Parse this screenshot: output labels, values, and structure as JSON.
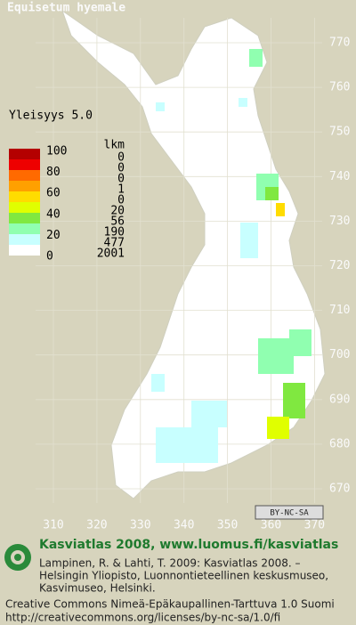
{
  "title": "Equisetum hyemale",
  "frequency_label": "Yleisyys 5.0",
  "legend": {
    "count_header": "lkm",
    "levels": [
      100,
      80,
      60,
      40,
      20,
      0
    ],
    "colors": [
      "#b40000",
      "#ee0000",
      "#ff6a00",
      "#ffa000",
      "#ffdc00",
      "#e0ff00",
      "#80e840",
      "#90ffb0",
      "#c8ffff",
      "#ffffff"
    ],
    "counts": [
      0,
      0,
      0,
      1,
      0,
      20,
      56,
      190,
      477,
      2001
    ]
  },
  "grid": {
    "northing": [
      770,
      760,
      750,
      740,
      730,
      720,
      710,
      700,
      690,
      680,
      670
    ],
    "easting": [
      310,
      320,
      330,
      340,
      350,
      360,
      370
    ]
  },
  "cc_badge": "BY-NC-SA",
  "footer": {
    "headline": "Kasviatlas 2008, www.luomus.fi/kasviatlas",
    "citation": [
      "Lampinen, R. & Lahti, T. 2009: Kasviatlas 2008. –",
      "Helsingin Yliopisto, Luonnontieteellinen keskusmuseo,",
      "Kasvimuseo, Helsinki."
    ],
    "license": [
      "Creative Commons Nimeä-Epäkaupallinen-Tarttuva 1.0 Suomi",
      "http://creativecommons.org/licenses/by-nc-sa/1.0/fi"
    ]
  }
}
